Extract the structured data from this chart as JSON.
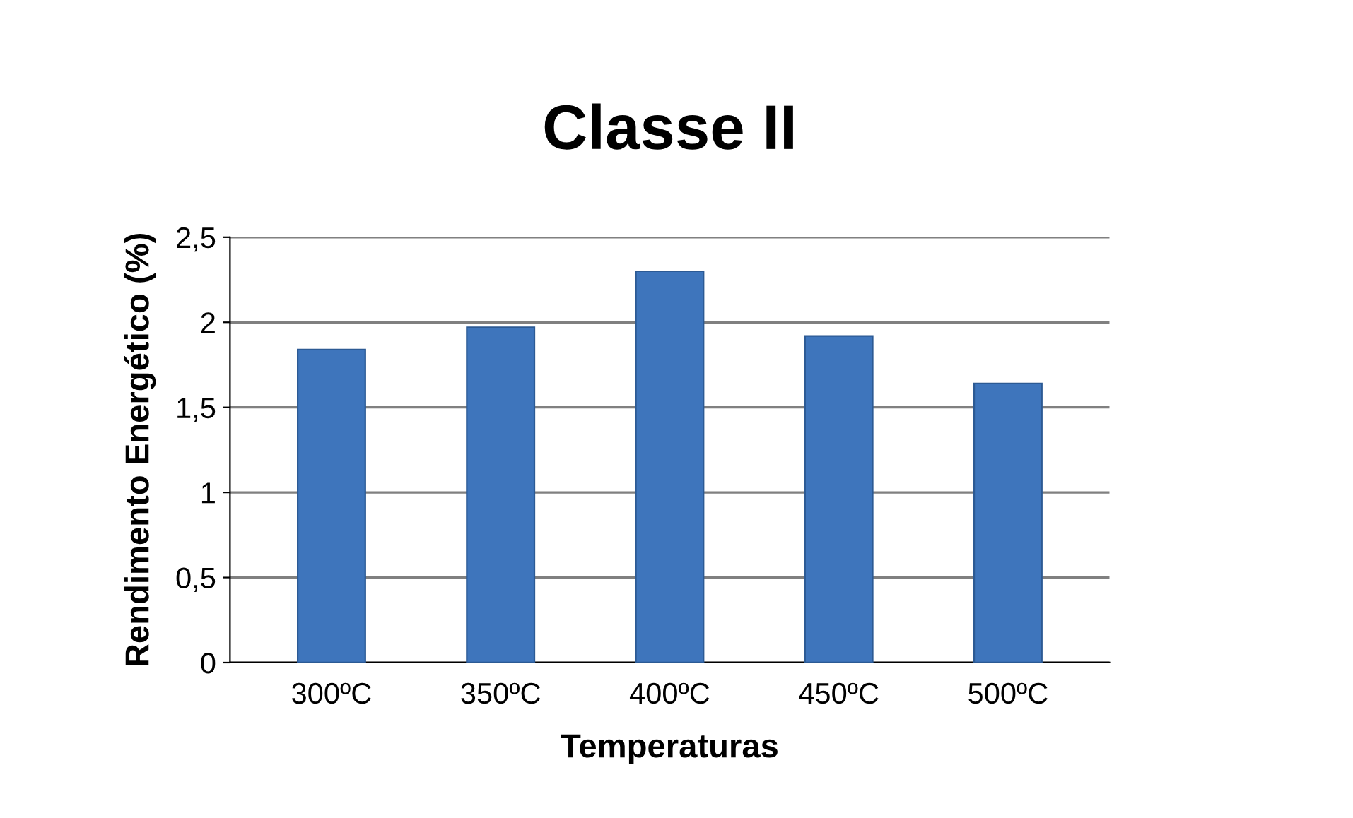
{
  "chart_data": {
    "type": "bar",
    "title": "Classe II",
    "xlabel": "Temperaturas",
    "ylabel": "Rendimento Energético (%)",
    "categories": [
      "300ºC",
      "350ºC",
      "400ºC",
      "450ºC",
      "500ºC"
    ],
    "values": [
      1.84,
      1.97,
      2.3,
      1.92,
      1.64
    ],
    "color": "#3e75bc",
    "ylim": [
      0,
      2.5
    ],
    "yticks": [
      {
        "value": 0,
        "label": "0"
      },
      {
        "value": 0.5,
        "label": "0,5"
      },
      {
        "value": 1,
        "label": "1"
      },
      {
        "value": 1.5,
        "label": "1,5"
      },
      {
        "value": 2,
        "label": "2"
      },
      {
        "value": 2.5,
        "label": "2,5"
      }
    ],
    "grid": "y",
    "legend": false
  }
}
